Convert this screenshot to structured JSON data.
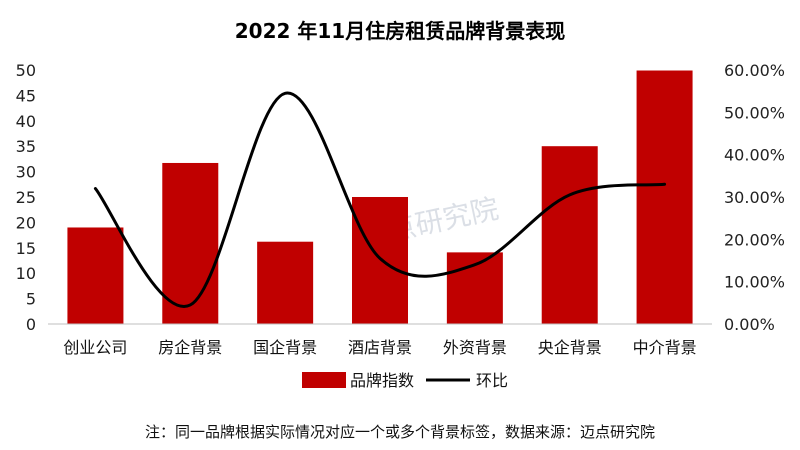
{
  "chart_data": {
    "type": "bar",
    "title": "2022 年11月住房租赁品牌背景表现",
    "categories": [
      "创业公司",
      "房企背景",
      "国企背景",
      "酒店背景",
      "外资背景",
      "央企背景",
      "中介背景"
    ],
    "series": [
      {
        "name": "品牌指数",
        "type": "bar",
        "axis": "left",
        "color": "#c00000",
        "values": [
          19,
          31.7,
          16.2,
          25,
          14.1,
          35,
          49.9
        ]
      },
      {
        "name": "环比",
        "type": "line",
        "axis": "right",
        "color": "#000000",
        "values": [
          0.32,
          0.045,
          0.545,
          0.155,
          0.14,
          0.305,
          0.33
        ]
      }
    ],
    "left_axis": {
      "ylim": [
        0,
        50
      ],
      "ticks": [
        "0",
        "5",
        "10",
        "15",
        "20",
        "25",
        "30",
        "35",
        "40",
        "45",
        "50"
      ]
    },
    "right_axis": {
      "ylim": [
        0,
        0.6
      ],
      "ticks": [
        "0.00%",
        "10.00%",
        "20.00%",
        "30.00%",
        "40.00%",
        "50.00%",
        "60.00%"
      ]
    },
    "grid": false,
    "legend": "bottom"
  },
  "note": "注：同一品牌根据实际情况对应一个或多个背景标签，数据来源：迈点研究院",
  "watermark": "迈点研究院"
}
